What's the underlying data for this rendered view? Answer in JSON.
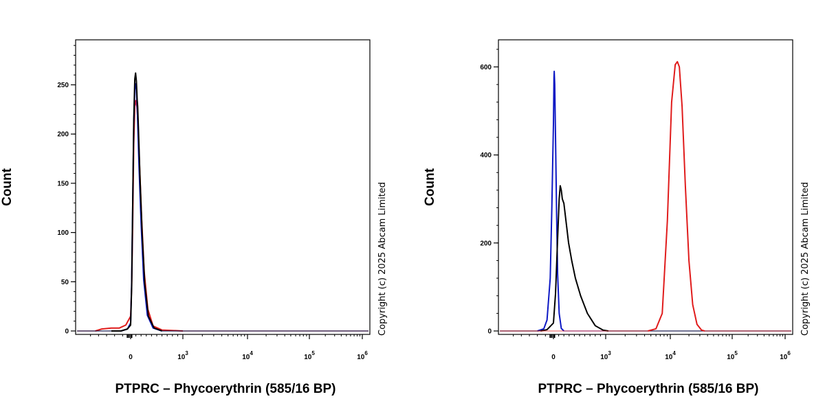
{
  "colors": {
    "black": "#000000",
    "blue": "#0d18c4",
    "red": "#e01b1b"
  },
  "chart_data": [
    {
      "type": "line",
      "ylabel": "Count",
      "xlabel": "PTPRC – Phycoerythrin (585/16 BP)",
      "x_scale": "biexponential",
      "xlim": [
        -300,
        1000000
      ],
      "ylim": [
        0,
        295
      ],
      "yticks": [
        0,
        50,
        100,
        150,
        200,
        250
      ],
      "xticks": [
        {
          "value": 0,
          "base": "0",
          "exp": ""
        },
        {
          "value": 1000,
          "base": "10",
          "exp": "3"
        },
        {
          "value": 10000,
          "base": "10",
          "exp": "4"
        },
        {
          "value": 100000,
          "base": "10",
          "exp": "5"
        },
        {
          "value": 1000000,
          "base": "10",
          "exp": "6"
        }
      ],
      "copyright": "Copyright (c) 2025 Abcam Limited",
      "series": [
        {
          "color": "red",
          "points": [
            [
              -220,
              0
            ],
            [
              -180,
              2
            ],
            [
              -120,
              3
            ],
            [
              -70,
              3
            ],
            [
              -30,
              6
            ],
            [
              0,
              15
            ],
            [
              20,
              45
            ],
            [
              40,
              110
            ],
            [
              60,
              190
            ],
            [
              80,
              228
            ],
            [
              100,
              234
            ],
            [
              120,
              228
            ],
            [
              140,
              212
            ],
            [
              170,
              170
            ],
            [
              210,
              115
            ],
            [
              260,
              60
            ],
            [
              330,
              22
            ],
            [
              430,
              5
            ],
            [
              600,
              1
            ],
            [
              1000,
              0
            ]
          ]
        },
        {
          "color": "blue",
          "points": [
            [
              -120,
              0
            ],
            [
              -60,
              0
            ],
            [
              -20,
              2
            ],
            [
              0,
              8
            ],
            [
              20,
              50
            ],
            [
              40,
              130
            ],
            [
              60,
              210
            ],
            [
              80,
              245
            ],
            [
              95,
              251
            ],
            [
              110,
              246
            ],
            [
              130,
              222
            ],
            [
              160,
              168
            ],
            [
              200,
              110
            ],
            [
              250,
              52
            ],
            [
              320,
              16
            ],
            [
              430,
              3
            ],
            [
              600,
              0
            ]
          ]
        },
        {
          "color": "black",
          "points": [
            [
              -120,
              0
            ],
            [
              -60,
              0
            ],
            [
              -20,
              2
            ],
            [
              0,
              6
            ],
            [
              20,
              45
            ],
            [
              40,
              130
            ],
            [
              60,
              215
            ],
            [
              80,
              256
            ],
            [
              95,
              262
            ],
            [
              110,
              254
            ],
            [
              125,
              235
            ],
            [
              135,
              228
            ],
            [
              150,
              205
            ],
            [
              180,
              155
            ],
            [
              220,
              100
            ],
            [
              270,
              48
            ],
            [
              340,
              15
            ],
            [
              450,
              3
            ],
            [
              600,
              0
            ]
          ]
        }
      ]
    },
    {
      "type": "line",
      "ylabel": "Count",
      "xlabel": "PTPRC – Phycoerythrin (585/16 BP)",
      "x_scale": "biexponential",
      "xlim": [
        -300,
        1000000
      ],
      "ylim": [
        0,
        660
      ],
      "yticks": [
        0,
        200,
        400,
        600
      ],
      "xticks": [
        {
          "value": 0,
          "base": "0",
          "exp": ""
        },
        {
          "value": 1000,
          "base": "10",
          "exp": "3"
        },
        {
          "value": 10000,
          "base": "10",
          "exp": "4"
        },
        {
          "value": 100000,
          "base": "10",
          "exp": "5"
        },
        {
          "value": 1000000,
          "base": "10",
          "exp": "6"
        }
      ],
      "copyright": "Copyright (c) 2025 Abcam Limited",
      "series": [
        {
          "color": "blue",
          "points": [
            [
              -100,
              0
            ],
            [
              -60,
              5
            ],
            [
              -40,
              25
            ],
            [
              -20,
              120
            ],
            [
              -10,
              280
            ],
            [
              0,
              470
            ],
            [
              10,
              575
            ],
            [
              15,
              590
            ],
            [
              25,
              560
            ],
            [
              40,
              440
            ],
            [
              60,
              270
            ],
            [
              80,
              130
            ],
            [
              110,
              40
            ],
            [
              150,
              6
            ],
            [
              200,
              0
            ]
          ]
        },
        {
          "color": "black",
          "points": [
            [
              -80,
              0
            ],
            [
              -40,
              3
            ],
            [
              0,
              18
            ],
            [
              40,
              85
            ],
            [
              80,
              210
            ],
            [
              110,
              300
            ],
            [
              130,
              330
            ],
            [
              150,
              320
            ],
            [
              170,
              300
            ],
            [
              200,
              290
            ],
            [
              240,
              250
            ],
            [
              290,
              200
            ],
            [
              350,
              160
            ],
            [
              420,
              120
            ],
            [
              520,
              80
            ],
            [
              650,
              40
            ],
            [
              800,
              12
            ],
            [
              950,
              2
            ],
            [
              1100,
              0
            ]
          ]
        },
        {
          "color": "red",
          "points": [
            [
              4500,
              0
            ],
            [
              6000,
              5
            ],
            [
              7500,
              40
            ],
            [
              9000,
              250
            ],
            [
              10500,
              520
            ],
            [
              12000,
              605
            ],
            [
              13000,
              612
            ],
            [
              14000,
              600
            ],
            [
              15500,
              510
            ],
            [
              17500,
              330
            ],
            [
              20000,
              160
            ],
            [
              23000,
              60
            ],
            [
              27000,
              15
            ],
            [
              32000,
              2
            ],
            [
              36000,
              0
            ]
          ]
        }
      ]
    }
  ]
}
